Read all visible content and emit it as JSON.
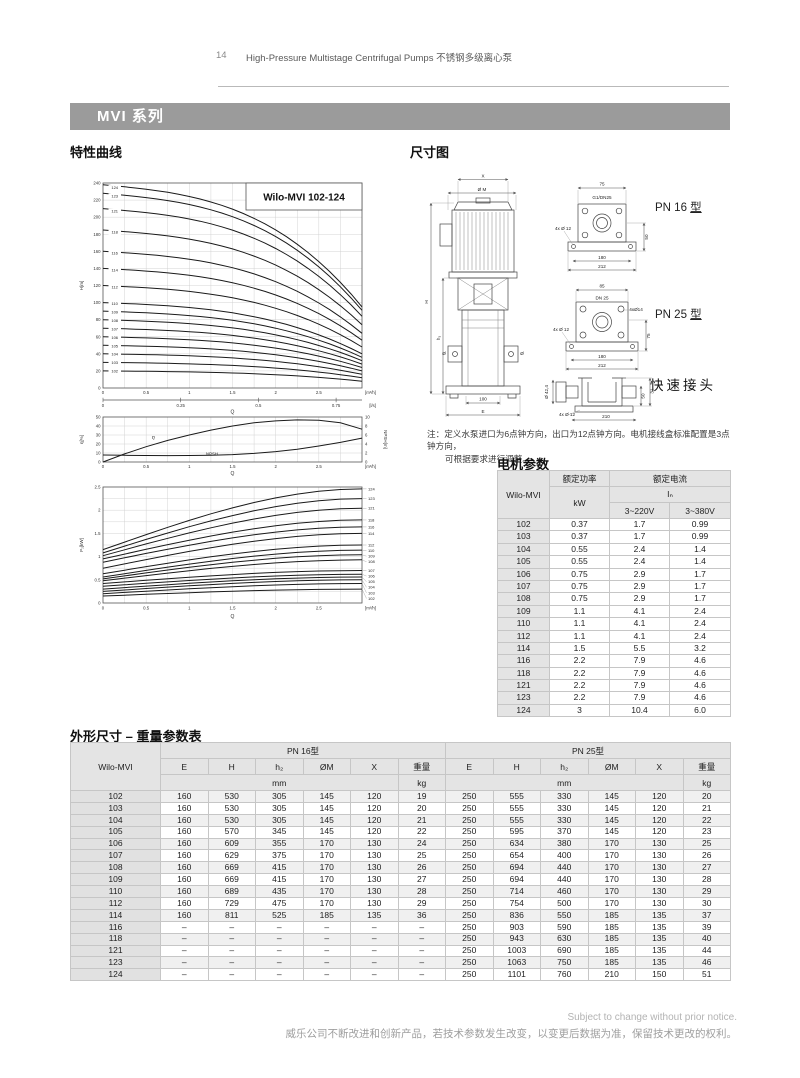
{
  "colors": {
    "banner": "#9b9b9b",
    "curve": "#1a1a1a",
    "table_header_bg": "#e4e4e4"
  },
  "header": {
    "page_number": "14",
    "title": "High-Pressure Multistage Centrifugal Pumps  不锈钢多级离心泵"
  },
  "banner": "MVI 系列",
  "sections": {
    "curves_title": "特性曲线",
    "dimensions_title": "尺寸图",
    "motor_title": "电机参数",
    "dims_table_title": "外形尺寸 – 重量参数表",
    "note_line1": "注：定义水泵进口为6点钟方向，出口为12点钟方向。电机接线盒标准配置是3点钟方向，",
    "note_line2": "可根据要求进行调整。"
  },
  "chart_data": [
    {
      "type": "line",
      "title": "Wilo-MVI 102-124",
      "ylabel": "H[m]",
      "xlabel": "Q",
      "x_unit": "[m³/h]",
      "x2_unit": "[l/s]",
      "xlim": [
        0,
        3
      ],
      "ylim": [
        0,
        240
      ],
      "grid": true,
      "xticks": [
        0,
        0.5,
        1,
        1.5,
        2,
        2.5
      ],
      "yticks": [
        0,
        20,
        40,
        60,
        80,
        100,
        120,
        140,
        160,
        180,
        200,
        220,
        240
      ],
      "x2ticks": [
        {
          "x": 0,
          "label": "0"
        },
        {
          "x": 0.9,
          "label": "0.25"
        },
        {
          "x": 1.8,
          "label": "0.5"
        },
        {
          "x": 2.7,
          "label": "0.75"
        }
      ],
      "series": [
        {
          "name": "102",
          "shutoff_head_m": 20,
          "head_at_max_flow_m": 8
        },
        {
          "name": "103",
          "shutoff_head_m": 30,
          "head_at_max_flow_m": 12
        },
        {
          "name": "104",
          "shutoff_head_m": 40,
          "head_at_max_flow_m": 16
        },
        {
          "name": "105",
          "shutoff_head_m": 50,
          "head_at_max_flow_m": 20
        },
        {
          "name": "106",
          "shutoff_head_m": 60,
          "head_at_max_flow_m": 24
        },
        {
          "name": "107",
          "shutoff_head_m": 70,
          "head_at_max_flow_m": 28
        },
        {
          "name": "108",
          "shutoff_head_m": 80,
          "head_at_max_flow_m": 32
        },
        {
          "name": "109",
          "shutoff_head_m": 90,
          "head_at_max_flow_m": 36
        },
        {
          "name": "110",
          "shutoff_head_m": 100,
          "head_at_max_flow_m": 40
        },
        {
          "name": "112",
          "shutoff_head_m": 120,
          "head_at_max_flow_m": 48
        },
        {
          "name": "114",
          "shutoff_head_m": 140,
          "head_at_max_flow_m": 56
        },
        {
          "name": "116",
          "shutoff_head_m": 160,
          "head_at_max_flow_m": 64
        },
        {
          "name": "118",
          "shutoff_head_m": 185,
          "head_at_max_flow_m": 74
        },
        {
          "name": "121",
          "shutoff_head_m": 210,
          "head_at_max_flow_m": 84
        },
        {
          "name": "123",
          "shutoff_head_m": 228,
          "head_at_max_flow_m": 91
        },
        {
          "name": "124",
          "shutoff_head_m": 238,
          "head_at_max_flow_m": 95
        }
      ]
    },
    {
      "type": "line",
      "ylabel": "η[%]",
      "y2label": "NPSH[m]",
      "xlabel": "Q",
      "x_unit": "[m³/h]",
      "xlim": [
        0,
        3
      ],
      "ylim": [
        0,
        50
      ],
      "y2lim": [
        0,
        10
      ],
      "grid": true,
      "xticks": [
        0,
        0.5,
        1,
        1.5,
        2,
        2.5
      ],
      "yticks": [
        0,
        10,
        20,
        30,
        40,
        50
      ],
      "y2ticks": [
        0,
        2,
        4,
        6,
        8,
        10
      ],
      "series": [
        {
          "name": "η",
          "axis": "left",
          "x": [
            0,
            0.25,
            0.5,
            0.75,
            1,
            1.25,
            1.5,
            1.75,
            2,
            2.25,
            2.5,
            2.75,
            3
          ],
          "y": [
            0,
            9,
            17,
            24,
            30,
            35.5,
            40,
            43.5,
            45.7,
            46.8,
            46.3,
            43.5,
            36.5
          ]
        },
        {
          "name": "NPSH",
          "axis": "right",
          "x": [
            0,
            0.25,
            0.5,
            0.75,
            1,
            1.25,
            1.5,
            1.75,
            2,
            2.25,
            2.5,
            2.75,
            3
          ],
          "y": [
            1.55,
            1.5,
            1.45,
            1.42,
            1.45,
            1.52,
            1.65,
            1.9,
            2.3,
            2.85,
            3.55,
            4.35,
            5.3
          ]
        }
      ]
    },
    {
      "type": "line",
      "ylabel": "P₂[kW]",
      "xlabel": "Q",
      "x_unit": "[m³/h]",
      "xlim": [
        0,
        3
      ],
      "ylim": [
        0,
        2.5
      ],
      "grid": true,
      "xticks": [
        0,
        0.5,
        1,
        1.5,
        2,
        2.5
      ],
      "yticks": [
        0,
        0.5,
        1,
        1.5,
        2,
        2.5
      ],
      "series": [
        {
          "name": "102",
          "p_at_zero_kw": 0.15,
          "p_at_max_kw": 0.3
        },
        {
          "name": "103",
          "p_at_zero_kw": 0.2,
          "p_at_max_kw": 0.42
        },
        {
          "name": "104",
          "p_at_zero_kw": 0.25,
          "p_at_max_kw": 0.5
        },
        {
          "name": "105",
          "p_at_zero_kw": 0.3,
          "p_at_max_kw": 0.56
        },
        {
          "name": "106",
          "p_at_zero_kw": 0.36,
          "p_at_max_kw": 0.62
        },
        {
          "name": "107",
          "p_at_zero_kw": 0.42,
          "p_at_max_kw": 0.7
        },
        {
          "name": "108",
          "p_at_zero_kw": 0.48,
          "p_at_max_kw": 0.93
        },
        {
          "name": "109",
          "p_at_zero_kw": 0.52,
          "p_at_max_kw": 1.04
        },
        {
          "name": "110",
          "p_at_zero_kw": 0.56,
          "p_at_max_kw": 1.14
        },
        {
          "name": "112",
          "p_at_zero_kw": 0.63,
          "p_at_max_kw": 1.25
        },
        {
          "name": "114",
          "p_at_zero_kw": 0.75,
          "p_at_max_kw": 1.5
        },
        {
          "name": "116",
          "p_at_zero_kw": 0.88,
          "p_at_max_kw": 1.64
        },
        {
          "name": "118",
          "p_at_zero_kw": 0.95,
          "p_at_max_kw": 1.79
        },
        {
          "name": "121",
          "p_at_zero_kw": 1.02,
          "p_at_max_kw": 2.04
        },
        {
          "name": "123",
          "p_at_zero_kw": 1.08,
          "p_at_max_kw": 2.25
        },
        {
          "name": "124",
          "p_at_zero_kw": 1.15,
          "p_at_max_kw": 2.46
        }
      ]
    }
  ],
  "drawings": {
    "pump": {
      "dim_x": "X",
      "dim_m": "Ø M",
      "dim_h": "H",
      "dim_h1": "h₁",
      "dim_dia": "Ø",
      "dim_100": "100",
      "dim_e": "E"
    },
    "pn16": {
      "d75": "75",
      "port": "G1/DN25",
      "bolts": "4x Ø 12",
      "d50": "50",
      "d180": "180",
      "d212": "212"
    },
    "pn25": {
      "d85": "85",
      "port": "DN 25",
      "bolts_upper": "4xØ14",
      "bolts_lower": "4x Ø 12",
      "d75": "75",
      "d180": "180",
      "d212": "212"
    },
    "quick": {
      "d42": "Ø 42,4",
      "d50": "50",
      "d31": "31",
      "bolts": "4x Ø 12",
      "d210": "210"
    },
    "pn16_label": "PN 16",
    "pn25_label": "PN 25",
    "type_suffix": "型",
    "quick_label": "快速接头"
  },
  "motor_table": {
    "col_model": "Wilo-MVI",
    "col_power": "额定功率",
    "col_current": "额定电流",
    "unit_kw": "kW",
    "current_symbol": "Iₙ",
    "col_220": "3~220V",
    "col_380": "3~380V",
    "rows": [
      [
        "102",
        "0.37",
        "1.7",
        "0.99"
      ],
      [
        "103",
        "0.37",
        "1.7",
        "0.99"
      ],
      [
        "104",
        "0.55",
        "2.4",
        "1.4"
      ],
      [
        "105",
        "0.55",
        "2.4",
        "1.4"
      ],
      [
        "106",
        "0.75",
        "2.9",
        "1.7"
      ],
      [
        "107",
        "0.75",
        "2.9",
        "1.7"
      ],
      [
        "108",
        "0.75",
        "2.9",
        "1.7"
      ],
      [
        "109",
        "1.1",
        "4.1",
        "2.4"
      ],
      [
        "110",
        "1.1",
        "4.1",
        "2.4"
      ],
      [
        "112",
        "1.1",
        "4.1",
        "2.4"
      ],
      [
        "114",
        "1.5",
        "5.5",
        "3.2"
      ],
      [
        "116",
        "2.2",
        "7.9",
        "4.6"
      ],
      [
        "118",
        "2.2",
        "7.9",
        "4.6"
      ],
      [
        "121",
        "2.2",
        "7.9",
        "4.6"
      ],
      [
        "123",
        "2.2",
        "7.9",
        "4.6"
      ],
      [
        "124",
        "3",
        "10.4",
        "6.0"
      ]
    ]
  },
  "dims_table": {
    "col_model": "Wilo-MVI",
    "pn16": "PN 16型",
    "pn25": "PN 25型",
    "sub_cols": [
      "E",
      "H",
      "h₂",
      "ØM",
      "X",
      "重量"
    ],
    "unit_mm": "mm",
    "unit_kg": "kg",
    "rows": [
      [
        "102",
        "160",
        "530",
        "305",
        "145",
        "120",
        "19",
        "250",
        "555",
        "330",
        "145",
        "120",
        "20"
      ],
      [
        "103",
        "160",
        "530",
        "305",
        "145",
        "120",
        "20",
        "250",
        "555",
        "330",
        "145",
        "120",
        "21"
      ],
      [
        "104",
        "160",
        "530",
        "305",
        "145",
        "120",
        "21",
        "250",
        "555",
        "330",
        "145",
        "120",
        "22"
      ],
      [
        "105",
        "160",
        "570",
        "345",
        "145",
        "120",
        "22",
        "250",
        "595",
        "370",
        "145",
        "120",
        "23"
      ],
      [
        "106",
        "160",
        "609",
        "355",
        "170",
        "130",
        "24",
        "250",
        "634",
        "380",
        "170",
        "130",
        "25"
      ],
      [
        "107",
        "160",
        "629",
        "375",
        "170",
        "130",
        "25",
        "250",
        "654",
        "400",
        "170",
        "130",
        "26"
      ],
      [
        "108",
        "160",
        "669",
        "415",
        "170",
        "130",
        "26",
        "250",
        "694",
        "440",
        "170",
        "130",
        "27"
      ],
      [
        "109",
        "160",
        "669",
        "415",
        "170",
        "130",
        "27",
        "250",
        "694",
        "440",
        "170",
        "130",
        "28"
      ],
      [
        "110",
        "160",
        "689",
        "435",
        "170",
        "130",
        "28",
        "250",
        "714",
        "460",
        "170",
        "130",
        "29"
      ],
      [
        "112",
        "160",
        "729",
        "475",
        "170",
        "130",
        "29",
        "250",
        "754",
        "500",
        "170",
        "130",
        "30"
      ],
      [
        "114",
        "160",
        "811",
        "525",
        "185",
        "135",
        "36",
        "250",
        "836",
        "550",
        "185",
        "135",
        "37"
      ],
      [
        "116",
        "–",
        "–",
        "–",
        "–",
        "–",
        "–",
        "250",
        "903",
        "590",
        "185",
        "135",
        "39"
      ],
      [
        "118",
        "–",
        "–",
        "–",
        "–",
        "–",
        "–",
        "250",
        "943",
        "630",
        "185",
        "135",
        "40"
      ],
      [
        "121",
        "–",
        "–",
        "–",
        "–",
        "–",
        "–",
        "250",
        "1003",
        "690",
        "185",
        "135",
        "44"
      ],
      [
        "123",
        "–",
        "–",
        "–",
        "–",
        "–",
        "–",
        "250",
        "1063",
        "750",
        "185",
        "135",
        "46"
      ],
      [
        "124",
        "–",
        "–",
        "–",
        "–",
        "–",
        "–",
        "250",
        "1101",
        "760",
        "210",
        "150",
        "51"
      ]
    ]
  },
  "footer": {
    "en": "Subject to change without prior notice.",
    "zh": "威乐公司不断改进和创新产品，若技术参数发生改变，以变更后数据为准，保留技术更改的权利。"
  }
}
